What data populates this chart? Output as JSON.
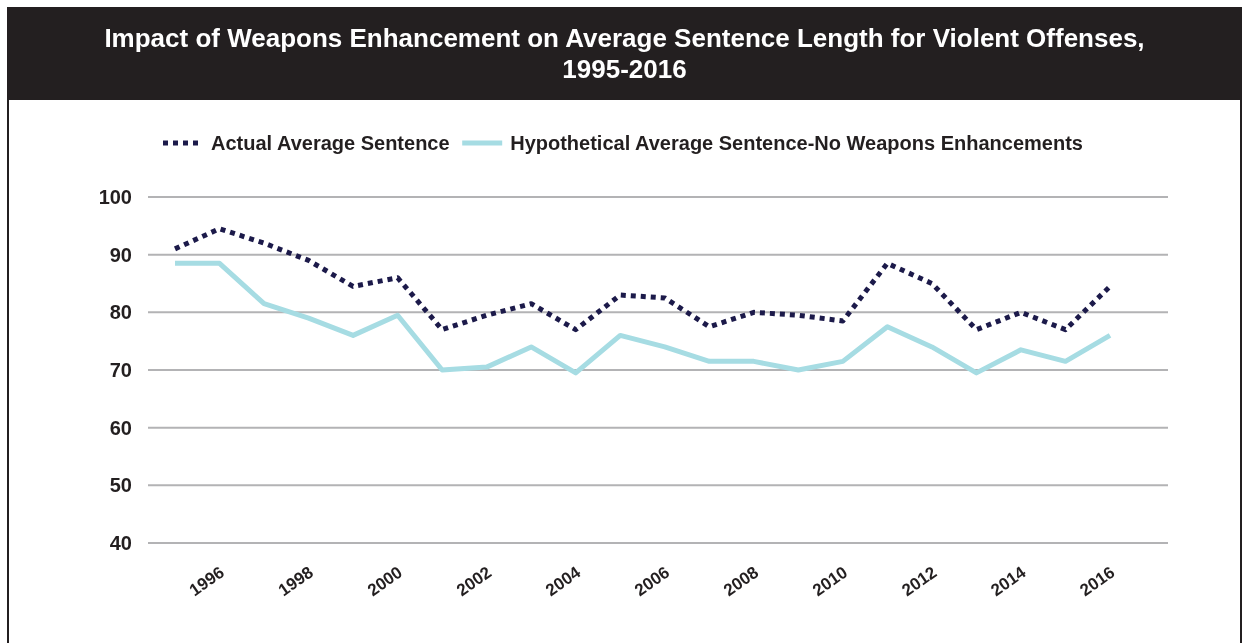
{
  "chart_data": {
    "type": "line",
    "title": "Impact of Weapons Enhancement on Average Sentence Length for Violent Offenses, 1995-2016",
    "categories": [
      null,
      "1996",
      null,
      "1998",
      null,
      "2000",
      null,
      "2002",
      null,
      "2004",
      null,
      "2006",
      null,
      "2008",
      null,
      "2010",
      null,
      "2012",
      null,
      "2014",
      null,
      "2016"
    ],
    "series": [
      {
        "name": "Actual Average Sentence",
        "color": "#1c1a4a",
        "line_style": "dotted",
        "values": [
          91,
          94.5,
          92,
          89,
          84.5,
          86,
          77,
          79.5,
          81.5,
          77,
          83,
          82.5,
          77.5,
          80,
          79.5,
          78.5,
          88.5,
          85,
          77,
          80,
          77,
          84.5
        ]
      },
      {
        "name": "Hypothetical Average Sentence-No Weapons Enhancements",
        "color": "#a6dce3",
        "line_style": "solid",
        "values": [
          88.5,
          88.5,
          81.5,
          79,
          76,
          79.5,
          70,
          70.5,
          74,
          69.5,
          76,
          74,
          71.5,
          71.5,
          70,
          71.5,
          77.5,
          74,
          69.5,
          73.5,
          71.5,
          76
        ]
      }
    ],
    "ylim": [
      40,
      100
    ],
    "yticks": [
      40,
      50,
      60,
      70,
      80,
      90,
      100
    ],
    "grid": "y",
    "legend": "top",
    "marker": "none"
  }
}
